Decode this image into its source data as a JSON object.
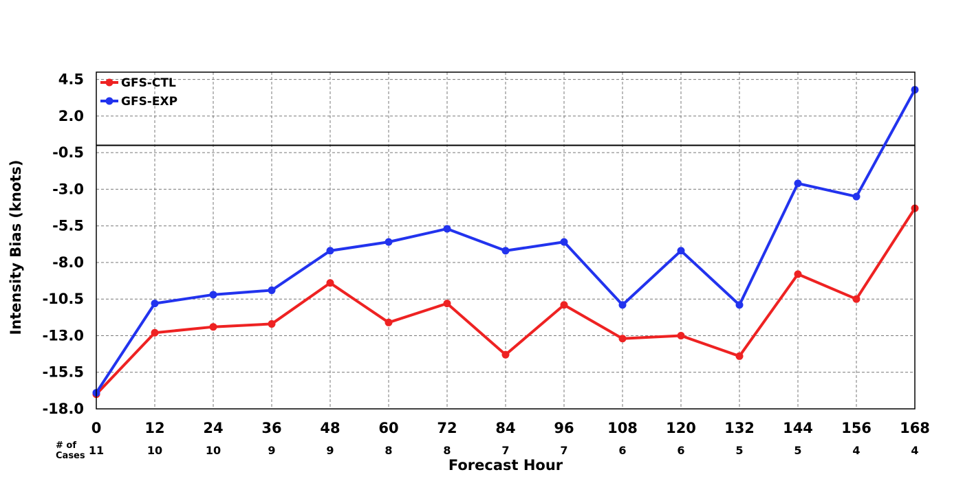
{
  "chart_data": {
    "type": "line",
    "xlabel": "Forecast Hour",
    "ylabel": "Intensity Bias (knots)",
    "x": [
      0,
      12,
      24,
      36,
      48,
      60,
      72,
      84,
      96,
      108,
      120,
      132,
      144,
      156,
      168
    ],
    "x_tick_labels": [
      "0",
      "12",
      "24",
      "36",
      "48",
      "60",
      "72",
      "84",
      "96",
      "108",
      "120",
      "132",
      "144",
      "156",
      "168"
    ],
    "xlim": [
      0,
      168
    ],
    "ylim": [
      -18.0,
      5.0
    ],
    "y_ticks": [
      4.5,
      2.0,
      -0.5,
      -3.0,
      -5.5,
      -8.0,
      -10.5,
      -13.0,
      -15.5,
      -18.0
    ],
    "y_tick_labels": [
      "4.5",
      "2.0",
      "-0.5",
      "-3.0",
      "-5.5",
      "-8.0",
      "-10.5",
      "-13.0",
      "-15.5",
      "-18.0"
    ],
    "zero_line": 0,
    "grid": true,
    "legend_position": "top-left",
    "cases_label": "# of Cases",
    "cases": [
      "11",
      "10",
      "10",
      "9",
      "9",
      "8",
      "8",
      "7",
      "7",
      "6",
      "6",
      "5",
      "5",
      "4",
      "4"
    ],
    "series": [
      {
        "name": "GFS-CTL",
        "color": "#ee2222",
        "values": [
          -17.0,
          -12.8,
          -12.4,
          -12.2,
          -9.4,
          -12.1,
          -10.8,
          -14.3,
          -10.9,
          -13.2,
          -13.0,
          -14.4,
          -8.8,
          -10.5,
          -4.3
        ]
      },
      {
        "name": "GFS-EXP",
        "color": "#2233ee",
        "values": [
          -16.9,
          -10.8,
          -10.2,
          -9.9,
          -7.2,
          -6.6,
          -5.7,
          -7.2,
          -6.6,
          -10.9,
          -7.2,
          -10.9,
          -2.6,
          -3.5,
          3.8
        ]
      }
    ]
  }
}
